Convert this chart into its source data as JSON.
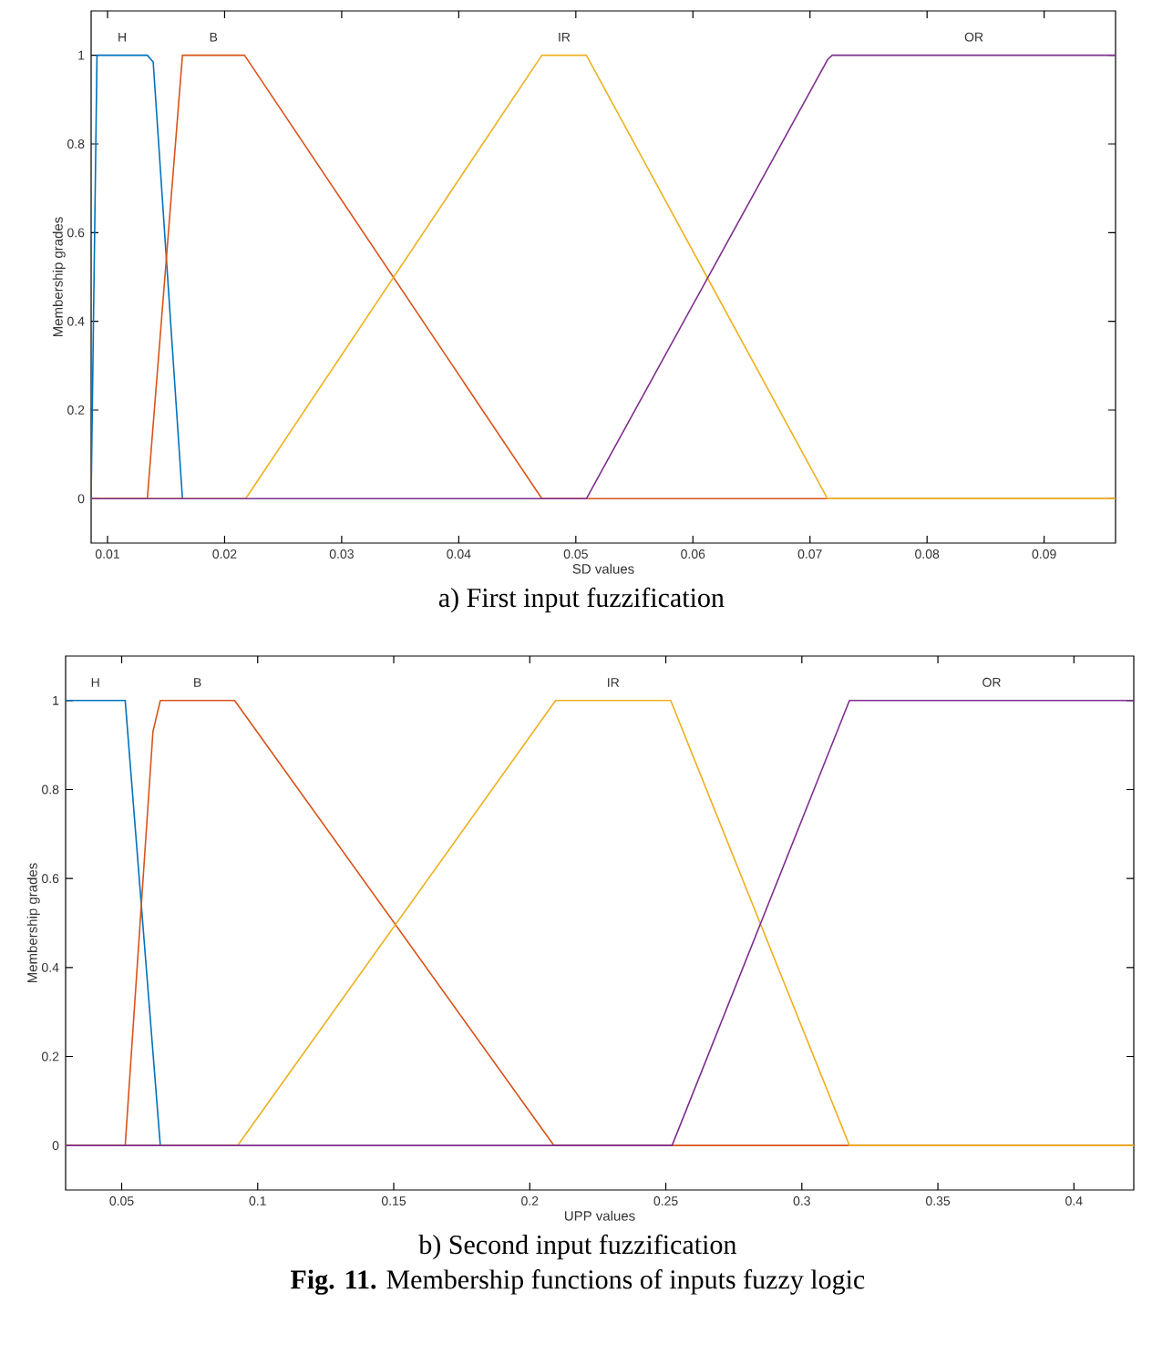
{
  "chart_data": [
    {
      "type": "line",
      "xlabel": "SD values",
      "ylabel": "Membership grades",
      "annotations": [
        "a) First input fuzzification"
      ],
      "xlim": [
        0.0086,
        0.0961
      ],
      "ylim": [
        -0.1,
        1.1
      ],
      "xticks": [
        0.01,
        0.02,
        0.03,
        0.04,
        0.05,
        0.06,
        0.07,
        0.08,
        0.09
      ],
      "yticks": [
        0,
        0.2,
        0.4,
        0.6,
        0.8,
        1
      ],
      "series": [
        {
          "name": "H",
          "color": "#0072bd",
          "x": [
            0.0086,
            0.0091,
            0.0134,
            0.0139,
            0.0164
          ],
          "values": [
            0,
            1,
            1,
            0.985,
            0
          ]
        },
        {
          "name": "B",
          "color": "#d95319",
          "x": [
            0.0086,
            0.0134,
            0.0164,
            0.0217,
            0.0471,
            0.0961
          ],
          "values": [
            0,
            0,
            1,
            1,
            0,
            0
          ]
        },
        {
          "name": "IR",
          "color": "#edb120",
          "x": [
            0.0086,
            0.0218,
            0.0471,
            0.0509,
            0.0715,
            0.0961
          ],
          "values": [
            0,
            0,
            1,
            1,
            0,
            0
          ]
        },
        {
          "name": "OR",
          "color": "#7e2f8e",
          "x": [
            0.0086,
            0.0509,
            0.0715,
            0.0719,
            0.0961
          ],
          "values": [
            0,
            0,
            0.99,
            1,
            1
          ]
        }
      ]
    },
    {
      "type": "line",
      "xlabel": "UPP values",
      "ylabel": "Membership grades",
      "annotations": [
        "b) Second input fuzzification",
        "**Fig. 11.** Membership functions of inputs fuzzy logic"
      ],
      "xlim": [
        0.0294,
        0.422
      ],
      "ylim": [
        -0.1,
        1.1
      ],
      "xticks": [
        0.05,
        0.1,
        0.15,
        0.2,
        0.25,
        0.3,
        0.35,
        0.4
      ],
      "yticks": [
        0,
        0.2,
        0.4,
        0.6,
        0.8,
        1
      ],
      "series": [
        {
          "name": "H",
          "color": "#0072bd",
          "x": [
            0.0294,
            0.0513,
            0.0642
          ],
          "values": [
            1,
            1,
            0
          ]
        },
        {
          "name": "B",
          "color": "#d95319",
          "x": [
            0.0294,
            0.0513,
            0.0615,
            0.0642,
            0.0915,
            0.2089,
            0.422
          ],
          "values": [
            0,
            0,
            0.93,
            1,
            1,
            0,
            0
          ]
        },
        {
          "name": "IR",
          "color": "#edb120",
          "x": [
            0.0294,
            0.0926,
            0.2095,
            0.2518,
            0.3175,
            0.422
          ],
          "values": [
            0,
            0,
            1,
            1,
            0,
            0
          ]
        },
        {
          "name": "OR",
          "color": "#7e2f8e",
          "x": [
            0.0294,
            0.2523,
            0.3175,
            0.422
          ],
          "values": [
            0,
            0,
            1,
            1
          ]
        }
      ]
    }
  ]
}
